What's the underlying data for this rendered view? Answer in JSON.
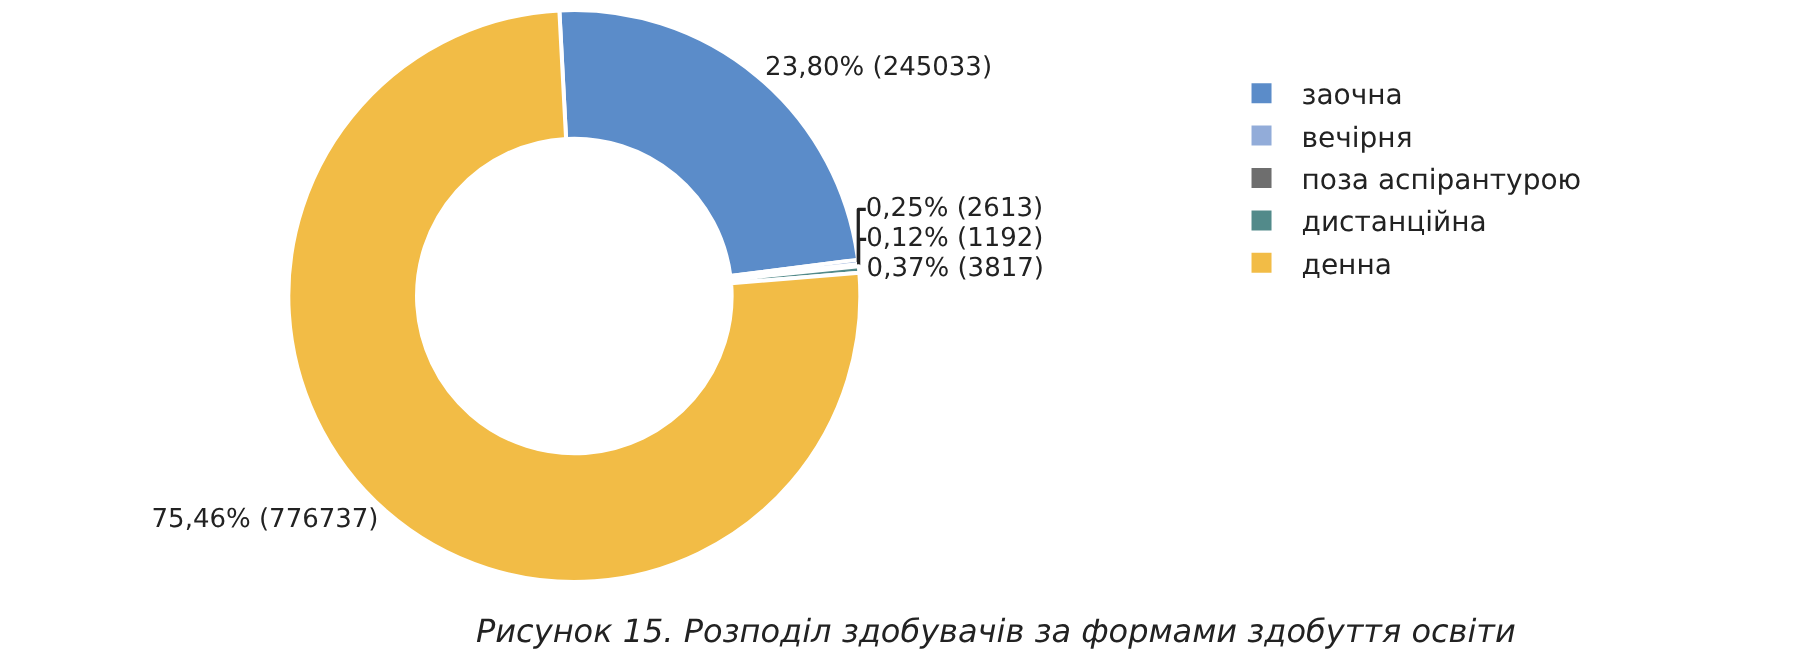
{
  "chart_data": {
    "type": "donut",
    "title": "Рисунок 15. Розподіл здобувачів за формами здобуття освіти",
    "categories": [
      "заочна",
      "вечірня",
      "поза аспірантурою",
      "дистанційна",
      "денна"
    ],
    "values": [
      245033,
      2613,
      1192,
      3817,
      776737
    ],
    "colors": [
      "#5b8cc9",
      "#92acd9",
      "#6e6e6e",
      "#528a8a",
      "#f2bc46"
    ],
    "value_labels": [
      "23,80% (245033)",
      "0,25% (2613)",
      "0,12% (1192)",
      "0,37% (3817)",
      "75,46% (776737)"
    ],
    "legend": "right"
  }
}
